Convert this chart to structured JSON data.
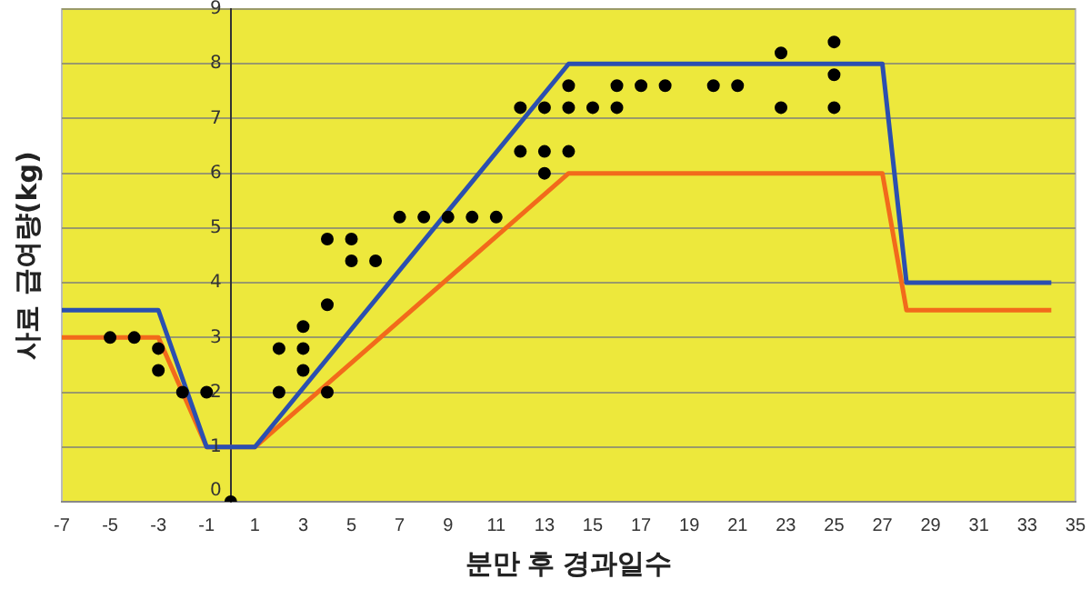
{
  "chart_data": {
    "type": "scatter",
    "xlabel": "분만 후 경과일수",
    "ylabel": "사료 급여량(kg)",
    "xlim": [
      -7,
      35
    ],
    "xticks": [
      -7,
      -5,
      -3,
      -1,
      1,
      3,
      5,
      7,
      9,
      11,
      13,
      15,
      17,
      19,
      21,
      23,
      25,
      27,
      29,
      31,
      33,
      35
    ],
    "ylim": [
      0,
      9
    ],
    "yticks": [
      0,
      1,
      2,
      3,
      4,
      5,
      6,
      7,
      8,
      9
    ],
    "grid": "y",
    "legend": false,
    "marker": "circle",
    "series": [
      {
        "type": "line",
        "color": "#2b4fb0",
        "x": [
          -7,
          -3,
          -1,
          1,
          14,
          27,
          28,
          34
        ],
        "values": [
          3.5,
          3.5,
          1,
          1,
          8,
          8,
          4,
          4
        ],
        "marker": "none"
      },
      {
        "type": "line",
        "color": "#f26a1b",
        "x": [
          -7,
          -3,
          -1,
          1,
          14,
          27,
          28,
          34
        ],
        "values": [
          3,
          3,
          1,
          1,
          6,
          6,
          3.5,
          3.5
        ],
        "marker": "none"
      },
      {
        "type": "scatter",
        "color": "#000000",
        "x": [
          -5,
          -4,
          -3,
          -3,
          -2,
          -1,
          0,
          2,
          2,
          3,
          3,
          3,
          4,
          4,
          4,
          5,
          5,
          6,
          7,
          8,
          9,
          10,
          11,
          12,
          12,
          13,
          13,
          13,
          14,
          14,
          14,
          15,
          16,
          16,
          17,
          18,
          20,
          21,
          22.8,
          22.8,
          25,
          25,
          25
        ],
        "values": [
          3,
          3,
          2.8,
          2.4,
          2,
          2,
          0,
          2.8,
          2,
          3.2,
          2.8,
          2.4,
          4.8,
          3.6,
          2,
          4.8,
          4.4,
          4.4,
          5.2,
          5.2,
          5.2,
          5.2,
          5.2,
          7.2,
          6.4,
          7.2,
          6.4,
          6,
          7.6,
          7.2,
          6.4,
          7.2,
          7.6,
          7.2,
          7.6,
          7.6,
          7.6,
          7.6,
          8.2,
          7.2,
          8.4,
          7.8,
          7.2
        ]
      }
    ]
  }
}
